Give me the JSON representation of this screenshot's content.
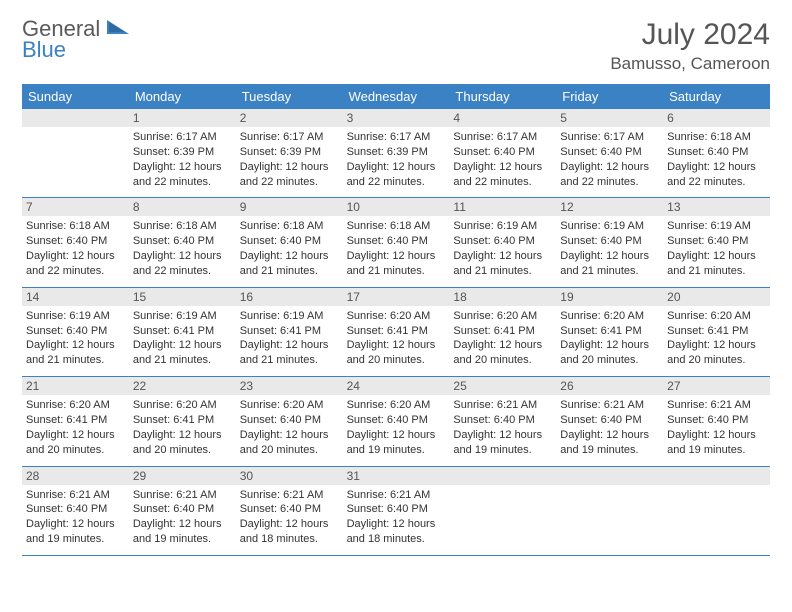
{
  "logo": {
    "word1": "General",
    "word2": "Blue"
  },
  "title": "July 2024",
  "location": "Bamusso, Cameroon",
  "colors": {
    "accent": "#3b82c4",
    "daynum_bg": "#e9e9e9",
    "text": "#555555"
  },
  "dayNames": [
    "Sunday",
    "Monday",
    "Tuesday",
    "Wednesday",
    "Thursday",
    "Friday",
    "Saturday"
  ],
  "weeks": [
    [
      {
        "n": "",
        "sr": "",
        "ss": "",
        "dl": ""
      },
      {
        "n": "1",
        "sr": "Sunrise: 6:17 AM",
        "ss": "Sunset: 6:39 PM",
        "dl": "Daylight: 12 hours and 22 minutes."
      },
      {
        "n": "2",
        "sr": "Sunrise: 6:17 AM",
        "ss": "Sunset: 6:39 PM",
        "dl": "Daylight: 12 hours and 22 minutes."
      },
      {
        "n": "3",
        "sr": "Sunrise: 6:17 AM",
        "ss": "Sunset: 6:39 PM",
        "dl": "Daylight: 12 hours and 22 minutes."
      },
      {
        "n": "4",
        "sr": "Sunrise: 6:17 AM",
        "ss": "Sunset: 6:40 PM",
        "dl": "Daylight: 12 hours and 22 minutes."
      },
      {
        "n": "5",
        "sr": "Sunrise: 6:17 AM",
        "ss": "Sunset: 6:40 PM",
        "dl": "Daylight: 12 hours and 22 minutes."
      },
      {
        "n": "6",
        "sr": "Sunrise: 6:18 AM",
        "ss": "Sunset: 6:40 PM",
        "dl": "Daylight: 12 hours and 22 minutes."
      }
    ],
    [
      {
        "n": "7",
        "sr": "Sunrise: 6:18 AM",
        "ss": "Sunset: 6:40 PM",
        "dl": "Daylight: 12 hours and 22 minutes."
      },
      {
        "n": "8",
        "sr": "Sunrise: 6:18 AM",
        "ss": "Sunset: 6:40 PM",
        "dl": "Daylight: 12 hours and 22 minutes."
      },
      {
        "n": "9",
        "sr": "Sunrise: 6:18 AM",
        "ss": "Sunset: 6:40 PM",
        "dl": "Daylight: 12 hours and 21 minutes."
      },
      {
        "n": "10",
        "sr": "Sunrise: 6:18 AM",
        "ss": "Sunset: 6:40 PM",
        "dl": "Daylight: 12 hours and 21 minutes."
      },
      {
        "n": "11",
        "sr": "Sunrise: 6:19 AM",
        "ss": "Sunset: 6:40 PM",
        "dl": "Daylight: 12 hours and 21 minutes."
      },
      {
        "n": "12",
        "sr": "Sunrise: 6:19 AM",
        "ss": "Sunset: 6:40 PM",
        "dl": "Daylight: 12 hours and 21 minutes."
      },
      {
        "n": "13",
        "sr": "Sunrise: 6:19 AM",
        "ss": "Sunset: 6:40 PM",
        "dl": "Daylight: 12 hours and 21 minutes."
      }
    ],
    [
      {
        "n": "14",
        "sr": "Sunrise: 6:19 AM",
        "ss": "Sunset: 6:40 PM",
        "dl": "Daylight: 12 hours and 21 minutes."
      },
      {
        "n": "15",
        "sr": "Sunrise: 6:19 AM",
        "ss": "Sunset: 6:41 PM",
        "dl": "Daylight: 12 hours and 21 minutes."
      },
      {
        "n": "16",
        "sr": "Sunrise: 6:19 AM",
        "ss": "Sunset: 6:41 PM",
        "dl": "Daylight: 12 hours and 21 minutes."
      },
      {
        "n": "17",
        "sr": "Sunrise: 6:20 AM",
        "ss": "Sunset: 6:41 PM",
        "dl": "Daylight: 12 hours and 20 minutes."
      },
      {
        "n": "18",
        "sr": "Sunrise: 6:20 AM",
        "ss": "Sunset: 6:41 PM",
        "dl": "Daylight: 12 hours and 20 minutes."
      },
      {
        "n": "19",
        "sr": "Sunrise: 6:20 AM",
        "ss": "Sunset: 6:41 PM",
        "dl": "Daylight: 12 hours and 20 minutes."
      },
      {
        "n": "20",
        "sr": "Sunrise: 6:20 AM",
        "ss": "Sunset: 6:41 PM",
        "dl": "Daylight: 12 hours and 20 minutes."
      }
    ],
    [
      {
        "n": "21",
        "sr": "Sunrise: 6:20 AM",
        "ss": "Sunset: 6:41 PM",
        "dl": "Daylight: 12 hours and 20 minutes."
      },
      {
        "n": "22",
        "sr": "Sunrise: 6:20 AM",
        "ss": "Sunset: 6:41 PM",
        "dl": "Daylight: 12 hours and 20 minutes."
      },
      {
        "n": "23",
        "sr": "Sunrise: 6:20 AM",
        "ss": "Sunset: 6:40 PM",
        "dl": "Daylight: 12 hours and 20 minutes."
      },
      {
        "n": "24",
        "sr": "Sunrise: 6:20 AM",
        "ss": "Sunset: 6:40 PM",
        "dl": "Daylight: 12 hours and 19 minutes."
      },
      {
        "n": "25",
        "sr": "Sunrise: 6:21 AM",
        "ss": "Sunset: 6:40 PM",
        "dl": "Daylight: 12 hours and 19 minutes."
      },
      {
        "n": "26",
        "sr": "Sunrise: 6:21 AM",
        "ss": "Sunset: 6:40 PM",
        "dl": "Daylight: 12 hours and 19 minutes."
      },
      {
        "n": "27",
        "sr": "Sunrise: 6:21 AM",
        "ss": "Sunset: 6:40 PM",
        "dl": "Daylight: 12 hours and 19 minutes."
      }
    ],
    [
      {
        "n": "28",
        "sr": "Sunrise: 6:21 AM",
        "ss": "Sunset: 6:40 PM",
        "dl": "Daylight: 12 hours and 19 minutes."
      },
      {
        "n": "29",
        "sr": "Sunrise: 6:21 AM",
        "ss": "Sunset: 6:40 PM",
        "dl": "Daylight: 12 hours and 19 minutes."
      },
      {
        "n": "30",
        "sr": "Sunrise: 6:21 AM",
        "ss": "Sunset: 6:40 PM",
        "dl": "Daylight: 12 hours and 18 minutes."
      },
      {
        "n": "31",
        "sr": "Sunrise: 6:21 AM",
        "ss": "Sunset: 6:40 PM",
        "dl": "Daylight: 12 hours and 18 minutes."
      },
      {
        "n": "",
        "sr": "",
        "ss": "",
        "dl": ""
      },
      {
        "n": "",
        "sr": "",
        "ss": "",
        "dl": ""
      },
      {
        "n": "",
        "sr": "",
        "ss": "",
        "dl": ""
      }
    ]
  ]
}
